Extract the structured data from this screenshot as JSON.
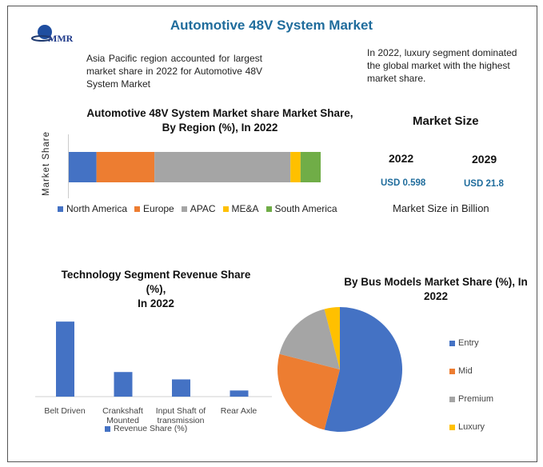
{
  "header": {
    "title": "Automotive 48V System Market",
    "logo_text": "MMR"
  },
  "notes": {
    "left": "Asia Pacific region accounted for largest market share in 2022 for Automotive 48V System Market",
    "right": "In 2022, luxury segment dominated the global market with the highest market share."
  },
  "market_size": {
    "title": "Market Size",
    "years": [
      {
        "year": "2022",
        "value": "USD 0.598"
      },
      {
        "year": "2029",
        "value": "USD 21.8"
      }
    ],
    "caption": "Market Size in Billion"
  },
  "colors": {
    "blue": "#4472c4",
    "orange": "#ed7d31",
    "gray": "#a5a5a5",
    "yellow": "#ffc000",
    "green": "#70ad47",
    "accent": "#1f6c9c"
  },
  "chart_data": [
    {
      "type": "bar",
      "orientation": "horizontal-stacked",
      "title_line1": "Automotive 48V System Market share Market Share,",
      "title_line2": "By Region (%), In 2022",
      "ylabel": "Market Share",
      "legend": "bottom",
      "series": [
        {
          "name": "North America",
          "value": 11,
          "color": "#4472c4"
        },
        {
          "name": "Europe",
          "value": 23,
          "color": "#ed7d31"
        },
        {
          "name": "APAC",
          "value": 54,
          "color": "#a5a5a5"
        },
        {
          "name": "ME&A",
          "value": 4,
          "color": "#ffc000"
        },
        {
          "name": "South America",
          "value": 8,
          "color": "#70ad47"
        }
      ]
    },
    {
      "type": "bar",
      "title_line1": "Technology Segment Revenue Share",
      "title_line2": "(%),",
      "title_line3": "In 2022",
      "categories": [
        "Belt Driven",
        "Crankshaft Mounted",
        "Input Shaft of transmission",
        "Rear Axle"
      ],
      "series": [
        {
          "name": "Revenue Share (%)",
          "values": [
            61,
            20,
            14,
            5
          ],
          "color": "#4472c4"
        }
      ],
      "legend": "bottom",
      "grid": false
    },
    {
      "type": "pie",
      "title_line1": "By Bus Models Market Share (%), In",
      "title_line2": "2022",
      "legend": "right",
      "slices": [
        {
          "name": "Entry",
          "value": 54,
          "color": "#4472c4"
        },
        {
          "name": "Mid",
          "value": 25,
          "color": "#ed7d31"
        },
        {
          "name": "Premium",
          "value": 17,
          "color": "#a5a5a5"
        },
        {
          "name": "Luxury",
          "value": 4,
          "color": "#ffc000"
        }
      ]
    }
  ]
}
